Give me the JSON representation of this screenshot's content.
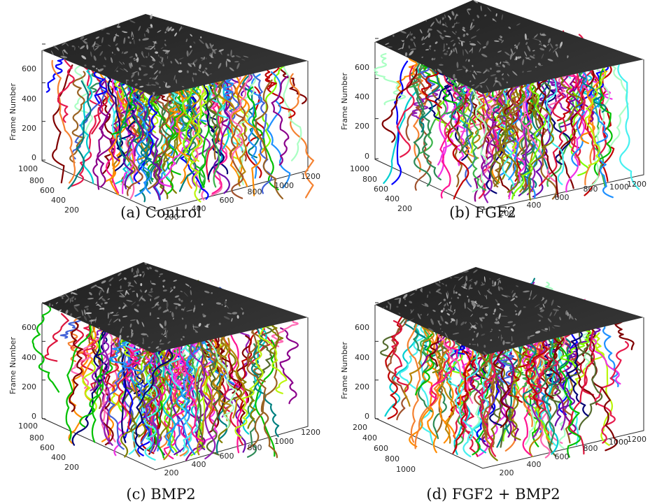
{
  "chart_data": [
    {
      "type": "line",
      "caption": "(a) Control",
      "ylabel": "Frame Number",
      "yticks": [
        "0",
        "200",
        "400",
        "600"
      ],
      "left_axis_ticks": [
        "1000",
        "800",
        "600",
        "400",
        "200"
      ],
      "right_axis_ticks": [
        "200",
        "400",
        "600",
        "800",
        "1000",
        "1200"
      ],
      "zlim": [
        0,
        760
      ],
      "track_count": 150,
      "seed": 11,
      "top_plane": "grayscale microscopy frame"
    },
    {
      "type": "line",
      "caption": "(b) FGF2",
      "ylabel": "Frame Number",
      "yticks": [
        "0",
        "200",
        "400",
        "600"
      ],
      "left_axis_ticks": [
        "1000",
        "800",
        "600",
        "400",
        "200"
      ],
      "right_axis_ticks": [
        "200",
        "400",
        "600",
        "800",
        "1000",
        "1200"
      ],
      "zlim": [
        0,
        760
      ],
      "track_count": 150,
      "seed": 23,
      "top_plane": "grayscale microscopy frame"
    },
    {
      "type": "line",
      "caption": "(c) BMP2",
      "ylabel": "Frame Number",
      "yticks": [
        "0",
        "200",
        "400",
        "600"
      ],
      "left_axis_ticks": [
        "1000",
        "800",
        "600",
        "400",
        "200"
      ],
      "right_axis_ticks": [
        "200",
        "400",
        "600",
        "800",
        "1000",
        "1200"
      ],
      "zlim": [
        0,
        760
      ],
      "track_count": 170,
      "seed": 37,
      "top_plane": "grayscale microscopy frame"
    },
    {
      "type": "line",
      "caption": "(d) FGF2 + BMP2",
      "ylabel": "Frame Number",
      "yticks": [
        "0",
        "200",
        "400",
        "600"
      ],
      "left_axis_ticks": [
        "200",
        "400",
        "600",
        "800",
        "1000"
      ],
      "right_axis_ticks": [
        "200",
        "400",
        "600",
        "800",
        "1000",
        "1200"
      ],
      "zlim": [
        0,
        760
      ],
      "track_count": 150,
      "seed": 53,
      "top_plane": "grayscale microscopy frame"
    }
  ],
  "colors": {
    "track_palette": [
      "#e6194b",
      "#3cb44b",
      "#4363d8",
      "#f58231",
      "#911eb4",
      "#46f0f0",
      "#f032e6",
      "#bcf60c",
      "#008080",
      "#9a6324",
      "#800000",
      "#aaffc3",
      "#808000",
      "#000075",
      "#ff69b4",
      "#00c000",
      "#c00000",
      "#0000ff",
      "#ff8c00",
      "#6a0dad",
      "#00ced1",
      "#a0522d",
      "#7fff00",
      "#dc143c",
      "#1e90ff",
      "#b8860b",
      "#ff1493",
      "#2e8b57",
      "#8b008b",
      "#556b2f"
    ],
    "plane_dark": "#2a2a2a",
    "axis": "#262626"
  }
}
